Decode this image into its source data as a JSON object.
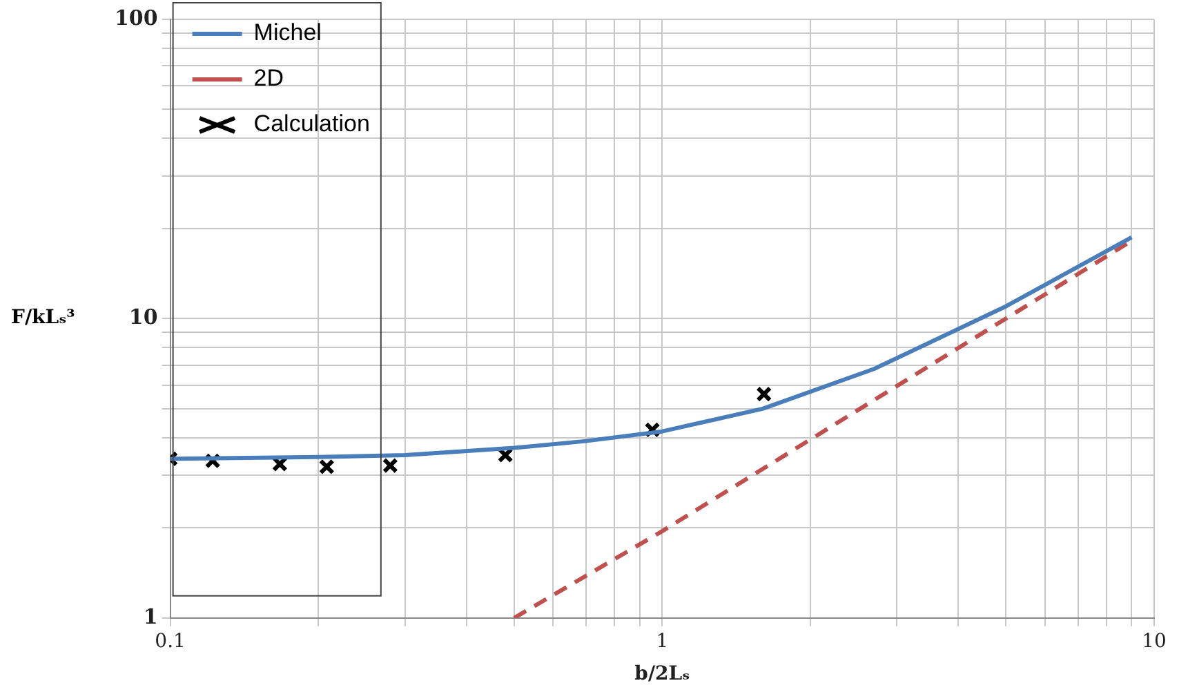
{
  "chart_data": {
    "type": "line",
    "xlabel": "b/2Lₛ",
    "ylabel": "F/kLₛ³",
    "log": "xy",
    "grid": true,
    "legend": "top left",
    "xlim": [
      0.1,
      10
    ],
    "ylim": [
      1,
      100
    ],
    "xticks": [
      0.1,
      {
        "value": 0.2,
        "label": null
      },
      {
        "value": 0.3,
        "label": null
      },
      {
        "value": 0.4,
        "label": null
      },
      {
        "value": 0.5,
        "label": null
      },
      {
        "value": 0.6,
        "label": null
      },
      {
        "value": 0.7,
        "label": null
      },
      {
        "value": 0.8,
        "label": null
      },
      {
        "value": 0.9,
        "label": null
      },
      1,
      {
        "value": 2,
        "label": null
      },
      {
        "value": 3,
        "label": null
      },
      {
        "value": 4,
        "label": null
      },
      {
        "value": 5,
        "label": null
      },
      {
        "value": 6,
        "label": null
      },
      {
        "value": 7,
        "label": null
      },
      {
        "value": 8,
        "label": null
      },
      {
        "value": 9,
        "label": null
      },
      10
    ],
    "yticks": [
      1,
      {
        "value": 2,
        "label": null
      },
      {
        "value": 3,
        "label": null
      },
      {
        "value": 4,
        "label": null
      },
      {
        "value": 5,
        "label": null
      },
      {
        "value": 6,
        "label": null
      },
      {
        "value": 7,
        "label": null
      },
      {
        "value": 8,
        "label": null
      },
      {
        "value": 9,
        "label": null
      },
      10,
      {
        "value": 20,
        "label": null
      },
      {
        "value": 30,
        "label": null
      },
      {
        "value": 40,
        "label": null
      },
      {
        "value": 50,
        "label": null
      },
      {
        "value": 60,
        "label": null
      },
      {
        "value": 70,
        "label": null
      },
      {
        "value": 80,
        "label": null
      },
      {
        "value": 90,
        "label": null
      },
      100
    ],
    "series": [
      {
        "name": "Michel",
        "color": "#4a7ebb",
        "line_style": "solid",
        "marker": "none",
        "x": [
          0.1,
          0.2,
          0.3,
          0.5,
          0.7,
          1,
          1.6,
          2.7,
          5,
          9
        ],
        "values": [
          3.4,
          3.45,
          3.5,
          3.7,
          3.9,
          4.2,
          5.0,
          6.8,
          11,
          18.7
        ]
      },
      {
        "name": "2D",
        "color": "#c0504d",
        "line_style": "dashed",
        "marker": "none",
        "x": [
          0.5,
          1,
          9
        ],
        "values": [
          1,
          1.95,
          18.2
        ]
      },
      {
        "name": "Calculation",
        "type": "scatter",
        "color": "#000000",
        "marker": "cross",
        "x": [
          0.1,
          0.122,
          0.167,
          0.208,
          0.28,
          0.48,
          0.955,
          1.61
        ],
        "values": [
          3.4,
          3.35,
          3.27,
          3.2,
          3.23,
          3.5,
          4.25,
          5.6
        ]
      }
    ]
  }
}
